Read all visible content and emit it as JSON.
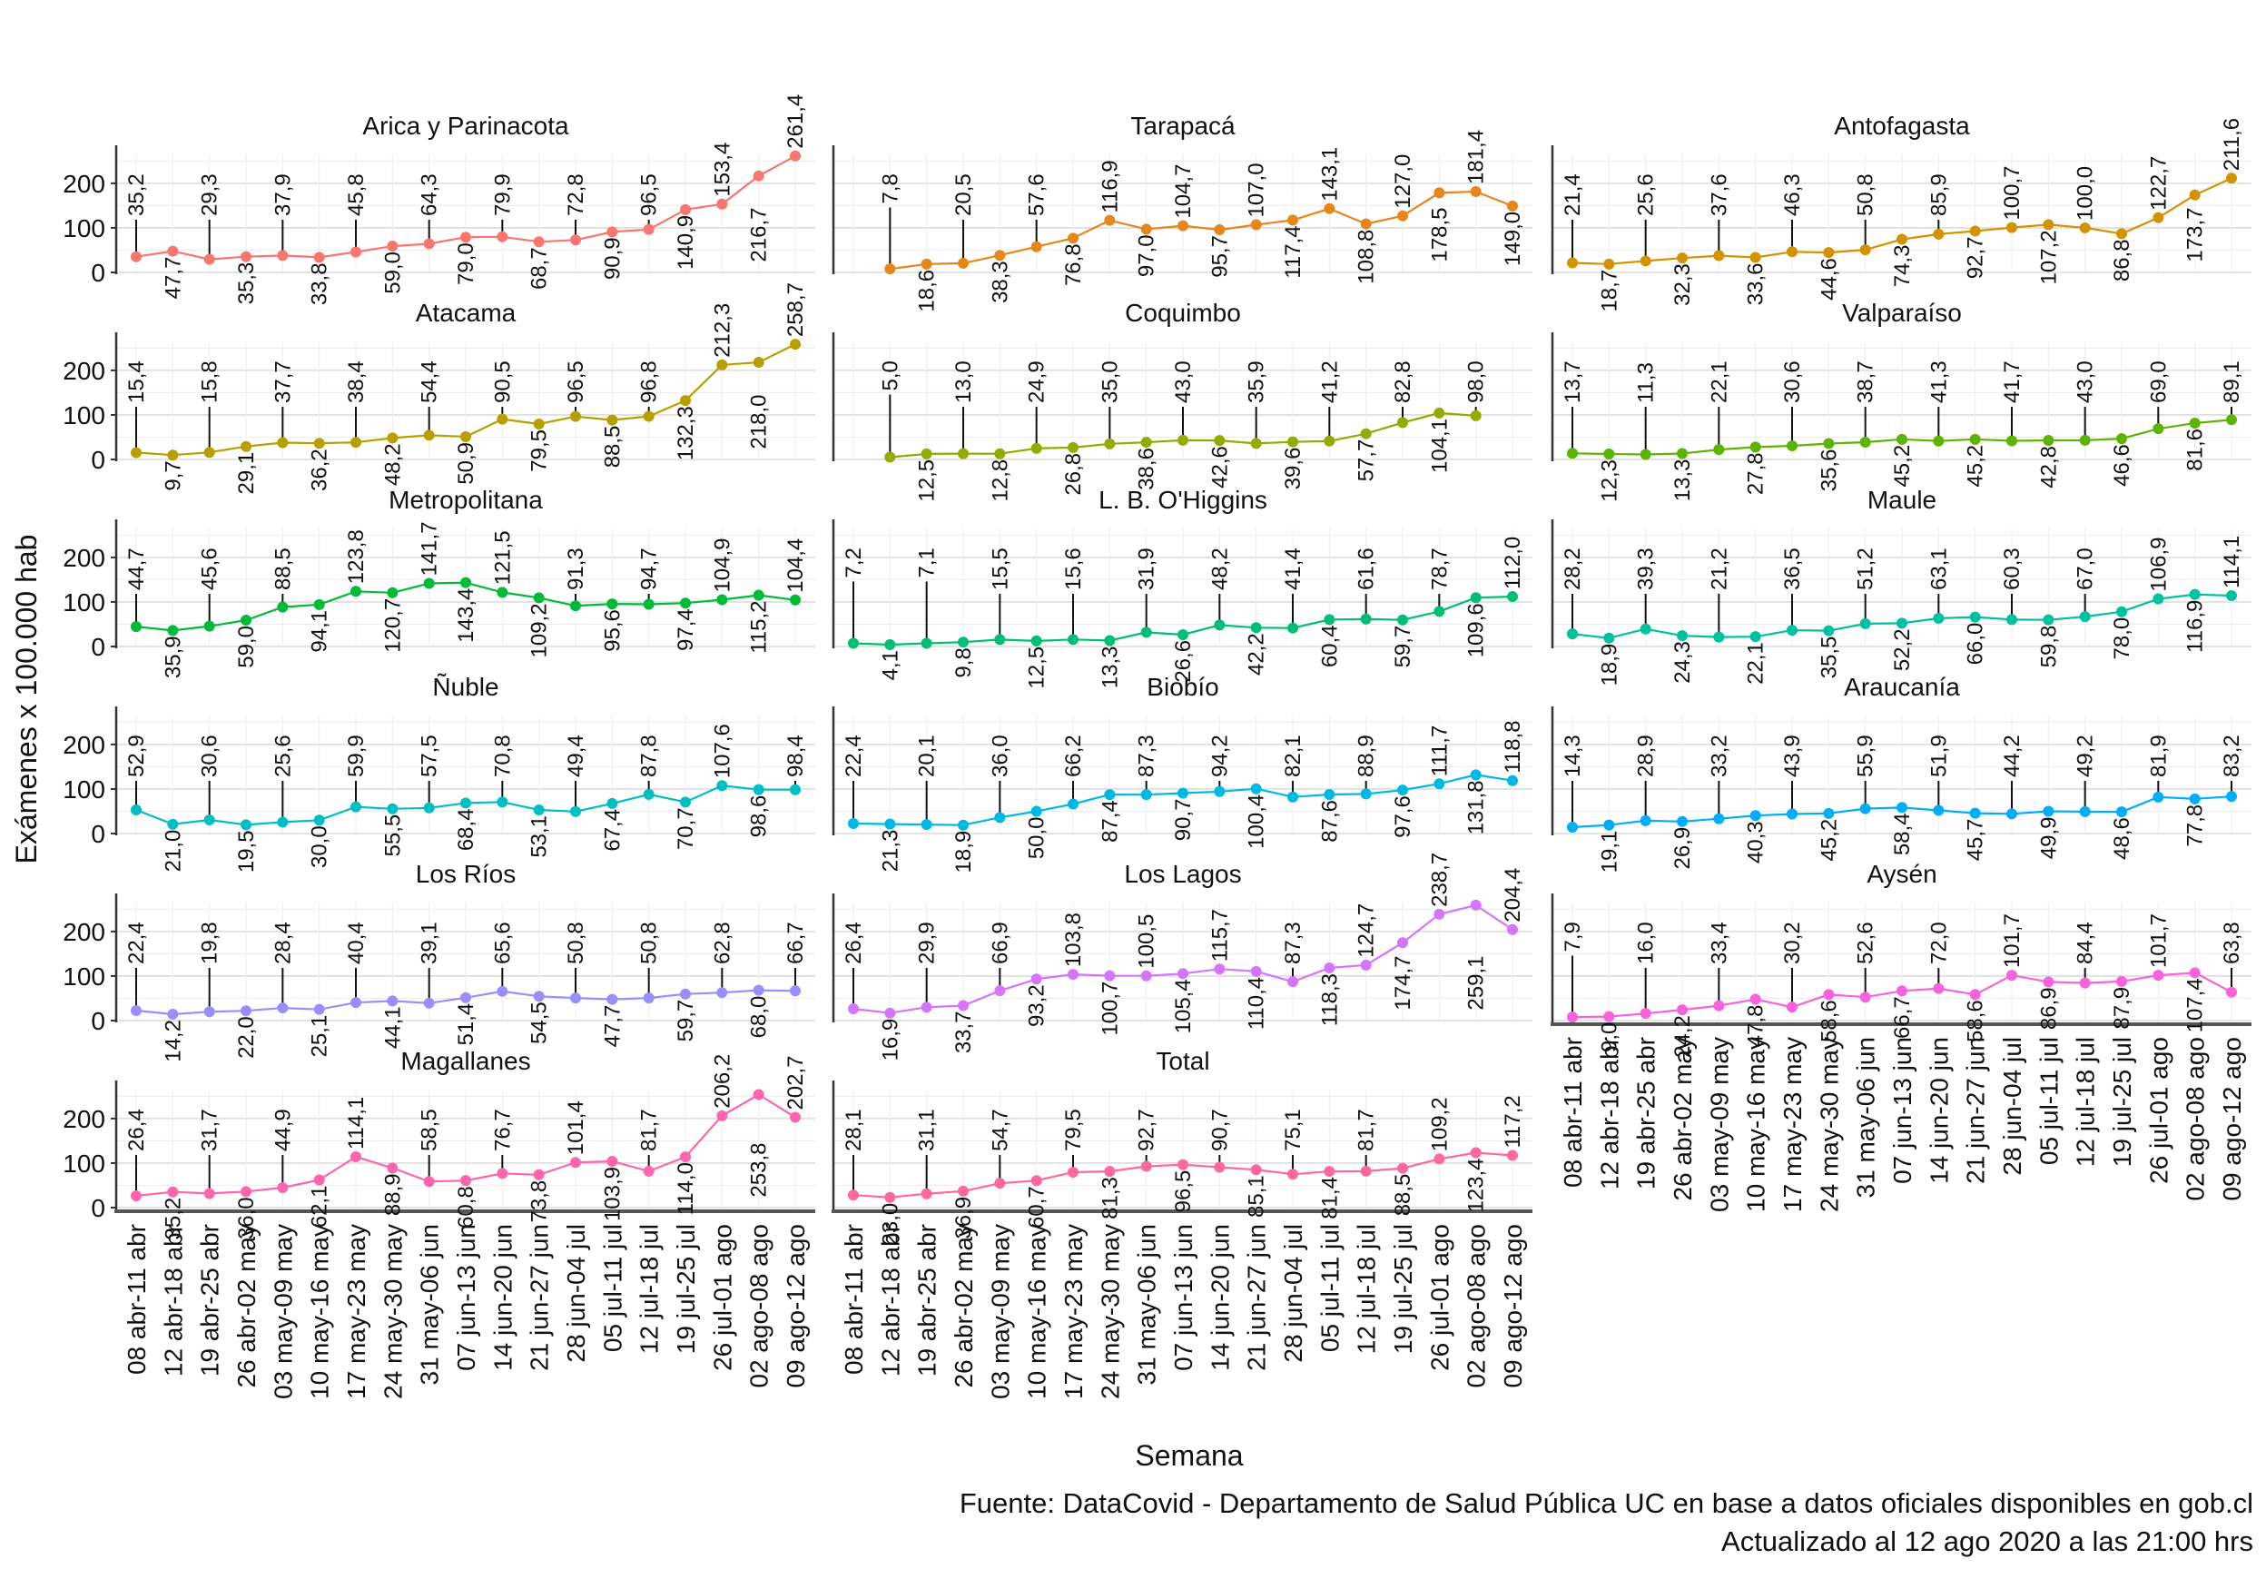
{
  "chart_data": {
    "type": "line",
    "ylabel": "Exámenes x 100.000 hab",
    "xlabel": "Semana",
    "caption": [
      "Fuente: DataCovid - Departamento de Salud Pública UC en base a datos oficiales disponibles en gob.cl",
      "Actualizado al 12 ago 2020 a las 21:00 hrs"
    ],
    "ylim": [
      0,
      265
    ],
    "yticks": [
      0,
      100,
      200
    ],
    "grid": true,
    "legend": "none",
    "categories": [
      "08 abr-11 abr",
      "12 abr-18 abr",
      "19 abr-25 abr",
      "26 abr-02 may",
      "03 may-09 may",
      "10 may-16 may",
      "17 may-23 may",
      "24 may-30 may",
      "31 may-06 jun",
      "07 jun-13 jun",
      "14 jun-20 jun",
      "21 jun-27 jun",
      "28 jun-04 jul",
      "05 jul-11 jul",
      "12 jul-18 jul",
      "19 jul-25 jul",
      "26 jul-01 ago",
      "02 ago-08 ago",
      "09 ago-12 ago"
    ],
    "panels": [
      {
        "name": "Arica y Parinacota",
        "color": "#F8766D",
        "values": [
          35.2,
          47.7,
          29.3,
          35.3,
          37.9,
          33.8,
          45.8,
          59.0,
          64.3,
          79.0,
          79.9,
          68.7,
          72.8,
          90.9,
          96.5,
          140.9,
          153.4,
          216.7,
          261.4
        ],
        "labels": [
          "35,2",
          "47,7",
          "29,3",
          "35,3",
          "37,9",
          "33,8",
          "45,8",
          "59,0",
          "64,3",
          "79,0",
          "79,9",
          "68,7",
          "72,8",
          "90,9",
          "96,5",
          "140,9",
          "153,4",
          "216,7",
          "261,4"
        ]
      },
      {
        "name": "Tarapacá",
        "color": "#E7861B",
        "values": [
          null,
          7.8,
          18.6,
          20.5,
          38.3,
          57.6,
          76.8,
          116.9,
          97.0,
          104.7,
          95.7,
          107.0,
          117.4,
          143.1,
          108.8,
          127.0,
          178.5,
          181.4,
          149.0
        ],
        "labels": [
          null,
          "7,8",
          "18,6",
          "20,5",
          "38,3",
          "57,6",
          "76,8",
          "116,9",
          "97,0",
          "104,7",
          "95,7",
          "107,0",
          "117,4",
          "143,1",
          "108,8",
          "127,0",
          "178,5",
          "181,4",
          "149,0"
        ]
      },
      {
        "name": "Antofagasta",
        "color": "#D39200",
        "values": [
          21.4,
          18.7,
          25.6,
          32.3,
          37.6,
          33.6,
          46.3,
          44.6,
          50.8,
          74.3,
          85.9,
          92.7,
          100.7,
          107.2,
          100.0,
          86.8,
          122.7,
          173.7,
          211.6
        ],
        "labels": [
          "21,4",
          "18,7",
          "25,6",
          "32,3",
          "37,6",
          "33,6",
          "46,3",
          "44,6",
          "50,8",
          "74,3",
          "85,9",
          "92,7",
          "100,7",
          "107,2",
          "100,0",
          "86,8",
          "122,7",
          "173,7",
          "211,6"
        ]
      },
      {
        "name": "Atacama",
        "color": "#B79F00",
        "values": [
          15.4,
          9.7,
          15.8,
          29.1,
          37.7,
          36.2,
          38.4,
          48.2,
          54.4,
          50.9,
          90.5,
          79.5,
          96.5,
          88.5,
          96.8,
          132.3,
          212.3,
          218.0,
          258.7
        ],
        "labels": [
          "15,4",
          "9,7",
          "15,8",
          "29,1",
          "37,7",
          "36,2",
          "38,4",
          "48,2",
          "54,4",
          "50,9",
          "90,5",
          "79,5",
          "96,5",
          "88,5",
          "96,8",
          "132,3",
          "212,3",
          "218,0",
          "258,7"
        ]
      },
      {
        "name": "Coquimbo",
        "color": "#93AA00",
        "values": [
          null,
          5.0,
          12.5,
          13.0,
          12.8,
          24.9,
          26.8,
          35.0,
          38.6,
          43.0,
          42.6,
          35.9,
          39.6,
          41.2,
          57.7,
          82.8,
          104.1,
          98.0,
          null
        ],
        "labels": [
          null,
          "5,0",
          "12,5",
          "13,0",
          "12,8",
          "24,9",
          "26,8",
          "35,0",
          "38,6",
          "43,0",
          "42,6",
          "35,9",
          "39,6",
          "41,2",
          "57,7",
          "82,8",
          "104,1",
          "98,0",
          null
        ]
      },
      {
        "name": "Valparaíso",
        "color": "#5EB300",
        "values": [
          13.7,
          12.3,
          11.3,
          13.3,
          22.1,
          27.8,
          30.6,
          35.6,
          38.7,
          45.2,
          41.3,
          45.2,
          41.7,
          42.8,
          43.0,
          46.6,
          69.0,
          81.6,
          89.1
        ],
        "labels": [
          "13,7",
          "12,3",
          "11,3",
          "13,3",
          "22,1",
          "27,8",
          "30,6",
          "35,6",
          "38,7",
          "45,2",
          "41,3",
          "45,2",
          "41,7",
          "42,8",
          "43,0",
          "46,6",
          "69,0",
          "81,6",
          "89,1"
        ]
      },
      {
        "name": "Metropolitana",
        "color": "#00BA38",
        "values": [
          44.7,
          35.9,
          45.6,
          59.0,
          88.5,
          94.1,
          123.8,
          120.7,
          141.7,
          143.4,
          121.5,
          109.2,
          91.3,
          95.6,
          94.7,
          97.4,
          104.9,
          115.2,
          104.4
        ],
        "labels": [
          "44,7",
          "35,9",
          "45,6",
          "59,0",
          "88,5",
          "94,1",
          "123,8",
          "120,7",
          "141,7",
          "143,4",
          "121,5",
          "109,2",
          "91,3",
          "95,6",
          "94,7",
          "97,4",
          "104,9",
          "115,2",
          "104,4"
        ]
      },
      {
        "name": "L. B. O'Higgins",
        "color": "#00BF74",
        "values": [
          7.2,
          4.1,
          7.1,
          9.8,
          15.5,
          12.5,
          15.6,
          13.3,
          31.9,
          26.6,
          48.2,
          42.2,
          41.4,
          60.4,
          61.6,
          59.7,
          78.7,
          109.6,
          112.0
        ],
        "labels": [
          "7,2",
          "4,1",
          "7,1",
          "9,8",
          "15,5",
          "12,5",
          "15,6",
          "13,3",
          "31,9",
          "26,6",
          "48,2",
          "42,2",
          "41,4",
          "60,4",
          "61,6",
          "59,7",
          "78,7",
          "109,6",
          "112,0"
        ]
      },
      {
        "name": "Maule",
        "color": "#00C19F",
        "values": [
          28.2,
          18.9,
          39.3,
          24.3,
          21.2,
          22.1,
          36.5,
          35.5,
          51.2,
          52.2,
          63.1,
          66.0,
          60.3,
          59.8,
          67.0,
          78.0,
          106.9,
          116.9,
          114.1
        ],
        "labels": [
          "28,2",
          "18,9",
          "39,3",
          "24,3",
          "21,2",
          "22,1",
          "36,5",
          "35,5",
          "51,2",
          "52,2",
          "63,1",
          "66,0",
          "60,3",
          "59,8",
          "67,0",
          "78,0",
          "106,9",
          "116,9",
          "114,1"
        ]
      },
      {
        "name": "Ñuble",
        "color": "#00BFC4",
        "values": [
          52.9,
          21.0,
          30.6,
          19.5,
          25.6,
          30.0,
          59.9,
          55.5,
          57.5,
          68.4,
          70.8,
          53.1,
          49.4,
          67.4,
          87.8,
          70.7,
          107.6,
          98.6,
          98.4
        ],
        "labels": [
          "52,9",
          "21,0",
          "30,6",
          "19,5",
          "25,6",
          "30,0",
          "59,9",
          "55,5",
          "57,5",
          "68,4",
          "70,8",
          "53,1",
          "49,4",
          "67,4",
          "87,8",
          "70,7",
          "107,6",
          "98,6",
          "98,4"
        ]
      },
      {
        "name": "Biobío",
        "color": "#00B9E3",
        "values": [
          22.4,
          21.3,
          20.1,
          18.9,
          36.0,
          50.0,
          66.2,
          87.4,
          87.3,
          90.7,
          94.2,
          100.4,
          82.1,
          87.6,
          88.9,
          97.6,
          111.7,
          131.8,
          118.8
        ],
        "labels": [
          "22,4",
          "21,3",
          "20,1",
          "18,9",
          "36,0",
          "50,0",
          "66,2",
          "87,4",
          "87,3",
          "90,7",
          "94,2",
          "100,4",
          "82,1",
          "87,6",
          "88,9",
          "97,6",
          "111,7",
          "131,8",
          "118,8"
        ]
      },
      {
        "name": "Araucanía",
        "color": "#00ADFA",
        "values": [
          14.3,
          19.1,
          28.9,
          26.9,
          33.2,
          40.3,
          43.9,
          45.2,
          55.9,
          58.4,
          51.9,
          45.7,
          44.2,
          49.9,
          49.2,
          48.6,
          81.9,
          77.8,
          83.2
        ],
        "labels": [
          "14,3",
          "19,1",
          "28,9",
          "26,9",
          "33,2",
          "40,3",
          "43,9",
          "45,2",
          "55,9",
          "58,4",
          "51,9",
          "45,7",
          "44,2",
          "49,9",
          "49,2",
          "48,6",
          "81,9",
          "77,8",
          "83,2"
        ]
      },
      {
        "name": "Los Ríos",
        "color": "#9A8EFF",
        "values": [
          22.4,
          14.2,
          19.8,
          22.0,
          28.4,
          25.1,
          40.4,
          44.1,
          39.1,
          51.4,
          65.6,
          54.5,
          50.8,
          47.7,
          50.8,
          59.7,
          62.8,
          68.0,
          66.7
        ],
        "labels": [
          "22,4",
          "14,2",
          "19,8",
          "22,0",
          "28,4",
          "25,1",
          "40,4",
          "44,1",
          "39,1",
          "51,4",
          "65,6",
          "54,5",
          "50,8",
          "47,7",
          "50,8",
          "59,7",
          "62,8",
          "68,0",
          "66,7"
        ]
      },
      {
        "name": "Los Lagos",
        "color": "#D575FE",
        "values": [
          26.4,
          16.9,
          29.9,
          33.7,
          66.9,
          93.2,
          103.8,
          100.7,
          100.5,
          105.4,
          115.7,
          110.4,
          87.3,
          118.3,
          124.7,
          174.7,
          238.7,
          259.1,
          204.4
        ],
        "labels": [
          "26,4",
          "16,9",
          "29,9",
          "33,7",
          "66,9",
          "93,2",
          "103,8",
          "100,7",
          "100,5",
          "105,4",
          "115,7",
          "110,4",
          "87,3",
          "118,3",
          "124,7",
          "174,7",
          "238,7",
          "259,1",
          "204,4"
        ]
      },
      {
        "name": "Aysén",
        "color": "#F962DD",
        "values": [
          7.9,
          9.0,
          16.0,
          24.2,
          33.4,
          47.8,
          30.2,
          58.6,
          52.6,
          66.7,
          72.0,
          58.6,
          101.7,
          86.9,
          84.4,
          87.9,
          101.7,
          107.4,
          63.8
        ],
        "labels": [
          "7,9",
          "9,0",
          "16,0",
          "24,2",
          "33,4",
          "47,8",
          "30,2",
          "58,6",
          "52,6",
          "66,7",
          "72,0",
          "58,6",
          "101,7",
          "86,9",
          "84,4",
          "87,9",
          "101,7",
          "107,4",
          "63,8"
        ]
      },
      {
        "name": "Magallanes",
        "color": "#FF65AC",
        "values": [
          26.4,
          35.2,
          31.7,
          36.0,
          44.9,
          62.1,
          114.1,
          88.9,
          58.5,
          60.8,
          76.7,
          73.8,
          101.4,
          103.9,
          81.7,
          114.0,
          206.2,
          253.8,
          202.7
        ],
        "labels": [
          "26,4",
          "35,2",
          "31,7",
          "36,0",
          "44,9",
          "62,1",
          "114,1",
          "88,9",
          "58,5",
          "60,8",
          "76,7",
          "73,8",
          "101,4",
          "103,9",
          "81,7",
          "114,0",
          "206,2",
          "253,8",
          "202,7"
        ]
      },
      {
        "name": "Total",
        "color": "#FF689F",
        "values": [
          28.1,
          23.0,
          31.1,
          36.9,
          54.7,
          60.7,
          79.5,
          81.3,
          92.7,
          96.5,
          90.7,
          85.1,
          75.1,
          81.4,
          81.7,
          88.5,
          109.2,
          123.4,
          117.2
        ],
        "labels": [
          "28,1",
          "23,0",
          "31,1",
          "36,9",
          "54,7",
          "60,7",
          "79,5",
          "81,3",
          "92,7",
          "96,5",
          "90,7",
          "85,1",
          "75,1",
          "81,4",
          "81,7",
          "88,5",
          "109,2",
          "123,4",
          "117,2"
        ]
      }
    ]
  }
}
